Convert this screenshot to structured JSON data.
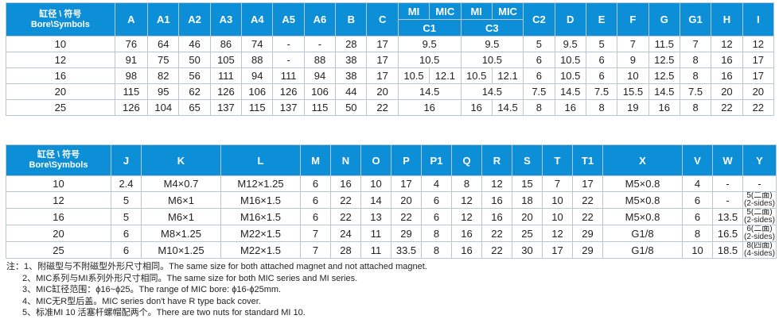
{
  "corner_label": [
    "缸径 \\ 符号",
    "Bore\\Symbols"
  ],
  "table1": {
    "headers_top": [
      "A",
      "A1",
      "A2",
      "A3",
      "A4",
      "A5",
      "A6",
      "B",
      "C",
      "MI",
      "MIC",
      "MI",
      "MIC",
      "C2",
      "D",
      "E",
      "F",
      "G",
      "G1",
      "H",
      "I"
    ],
    "headers_sub": [
      "C1",
      "C3"
    ],
    "rows": [
      [
        "10",
        "76",
        "64",
        "46",
        "86",
        "74",
        "-",
        "-",
        "28",
        "17",
        "9.5",
        "",
        "9.5",
        "",
        "5",
        "9.5",
        "5",
        "7",
        "11.5",
        "7",
        "12",
        "12"
      ],
      [
        "12",
        "91",
        "75",
        "50",
        "105",
        "88",
        "-",
        "88",
        "38",
        "17",
        "10.5",
        "",
        "10.5",
        "",
        "6",
        "10.5",
        "6",
        "9",
        "12.5",
        "8",
        "16",
        "17"
      ],
      [
        "16",
        "98",
        "82",
        "56",
        "111",
        "94",
        "111",
        "94",
        "38",
        "17",
        "10.5",
        "12.1",
        "10.5",
        "12.1",
        "6",
        "10.5",
        "6",
        "10",
        "12.5",
        "8",
        "16",
        "17"
      ],
      [
        "20",
        "115",
        "95",
        "62",
        "126",
        "106",
        "126",
        "106",
        "44",
        "20",
        "14.5",
        "",
        "14.5",
        "",
        "7.5",
        "14.5",
        "7.5",
        "15.5",
        "14.5",
        "7.5",
        "20",
        "20"
      ],
      [
        "25",
        "126",
        "104",
        "65",
        "137",
        "115",
        "137",
        "115",
        "50",
        "22",
        "16",
        "",
        "16",
        "14.5",
        "8",
        "16",
        "8",
        "19",
        "16",
        "8",
        "22",
        "22"
      ]
    ]
  },
  "table2": {
    "headers": [
      "J",
      "K",
      "L",
      "M",
      "N",
      "O",
      "P",
      "P1",
      "Q",
      "R",
      "S",
      "T",
      "T1",
      "X",
      "V",
      "W",
      "Y"
    ],
    "rows": [
      [
        "10",
        "2.4",
        "M4×0.7",
        "M12×1.25",
        "6",
        "16",
        "10",
        "17",
        "4",
        "8",
        "12",
        "15",
        "7",
        "17",
        "M5×0.8",
        "4",
        "-",
        "-"
      ],
      [
        "12",
        "5",
        "M6×1",
        "M16×1.5",
        "6",
        "22",
        "14",
        "20",
        "6",
        "12",
        "16",
        "18",
        "10",
        "22",
        "M5×0.8",
        "6",
        "-",
        "5(二面)\n(2-sides)"
      ],
      [
        "16",
        "5",
        "M6×1",
        "M16×1.5",
        "6",
        "22",
        "13",
        "22",
        "6",
        "12",
        "16",
        "20",
        "10",
        "22",
        "M5×0.8",
        "6",
        "13.5",
        "5(二面)\n(2-sides)"
      ],
      [
        "20",
        "6",
        "M8×1.25",
        "M22×1.5",
        "7",
        "24",
        "11",
        "29",
        "8",
        "16",
        "22",
        "25",
        "12",
        "29",
        "G1/8",
        "8",
        "16.5",
        "6(二面)\n(2-sides)"
      ],
      [
        "25",
        "6",
        "M10×1.25",
        "M22×1.5",
        "7",
        "28",
        "11",
        "33.5",
        "8",
        "16",
        "22",
        "30",
        "17",
        "29",
        "G1/8",
        "10",
        "18.5",
        "8(四面)\n(4-sides)"
      ]
    ]
  },
  "notes": [
    "注：1、附磁型与不附磁型外形尺寸相同。The same size for both attached magnet and not attached magnet.",
    "2、MIC系列与MI系列外形尺寸相同。The same size for both MIC series and MI series.",
    "3、MIC缸径范围：ϕ16~ϕ25。The  range of MIC  bore: ϕ16-ϕ25mm.",
    "4、MIC无R型后盖。MIC series don't have R type back cover.",
    "5、标准MI 10 活塞杆螺帽配两个。There are two nuts for standard MI 10."
  ]
}
